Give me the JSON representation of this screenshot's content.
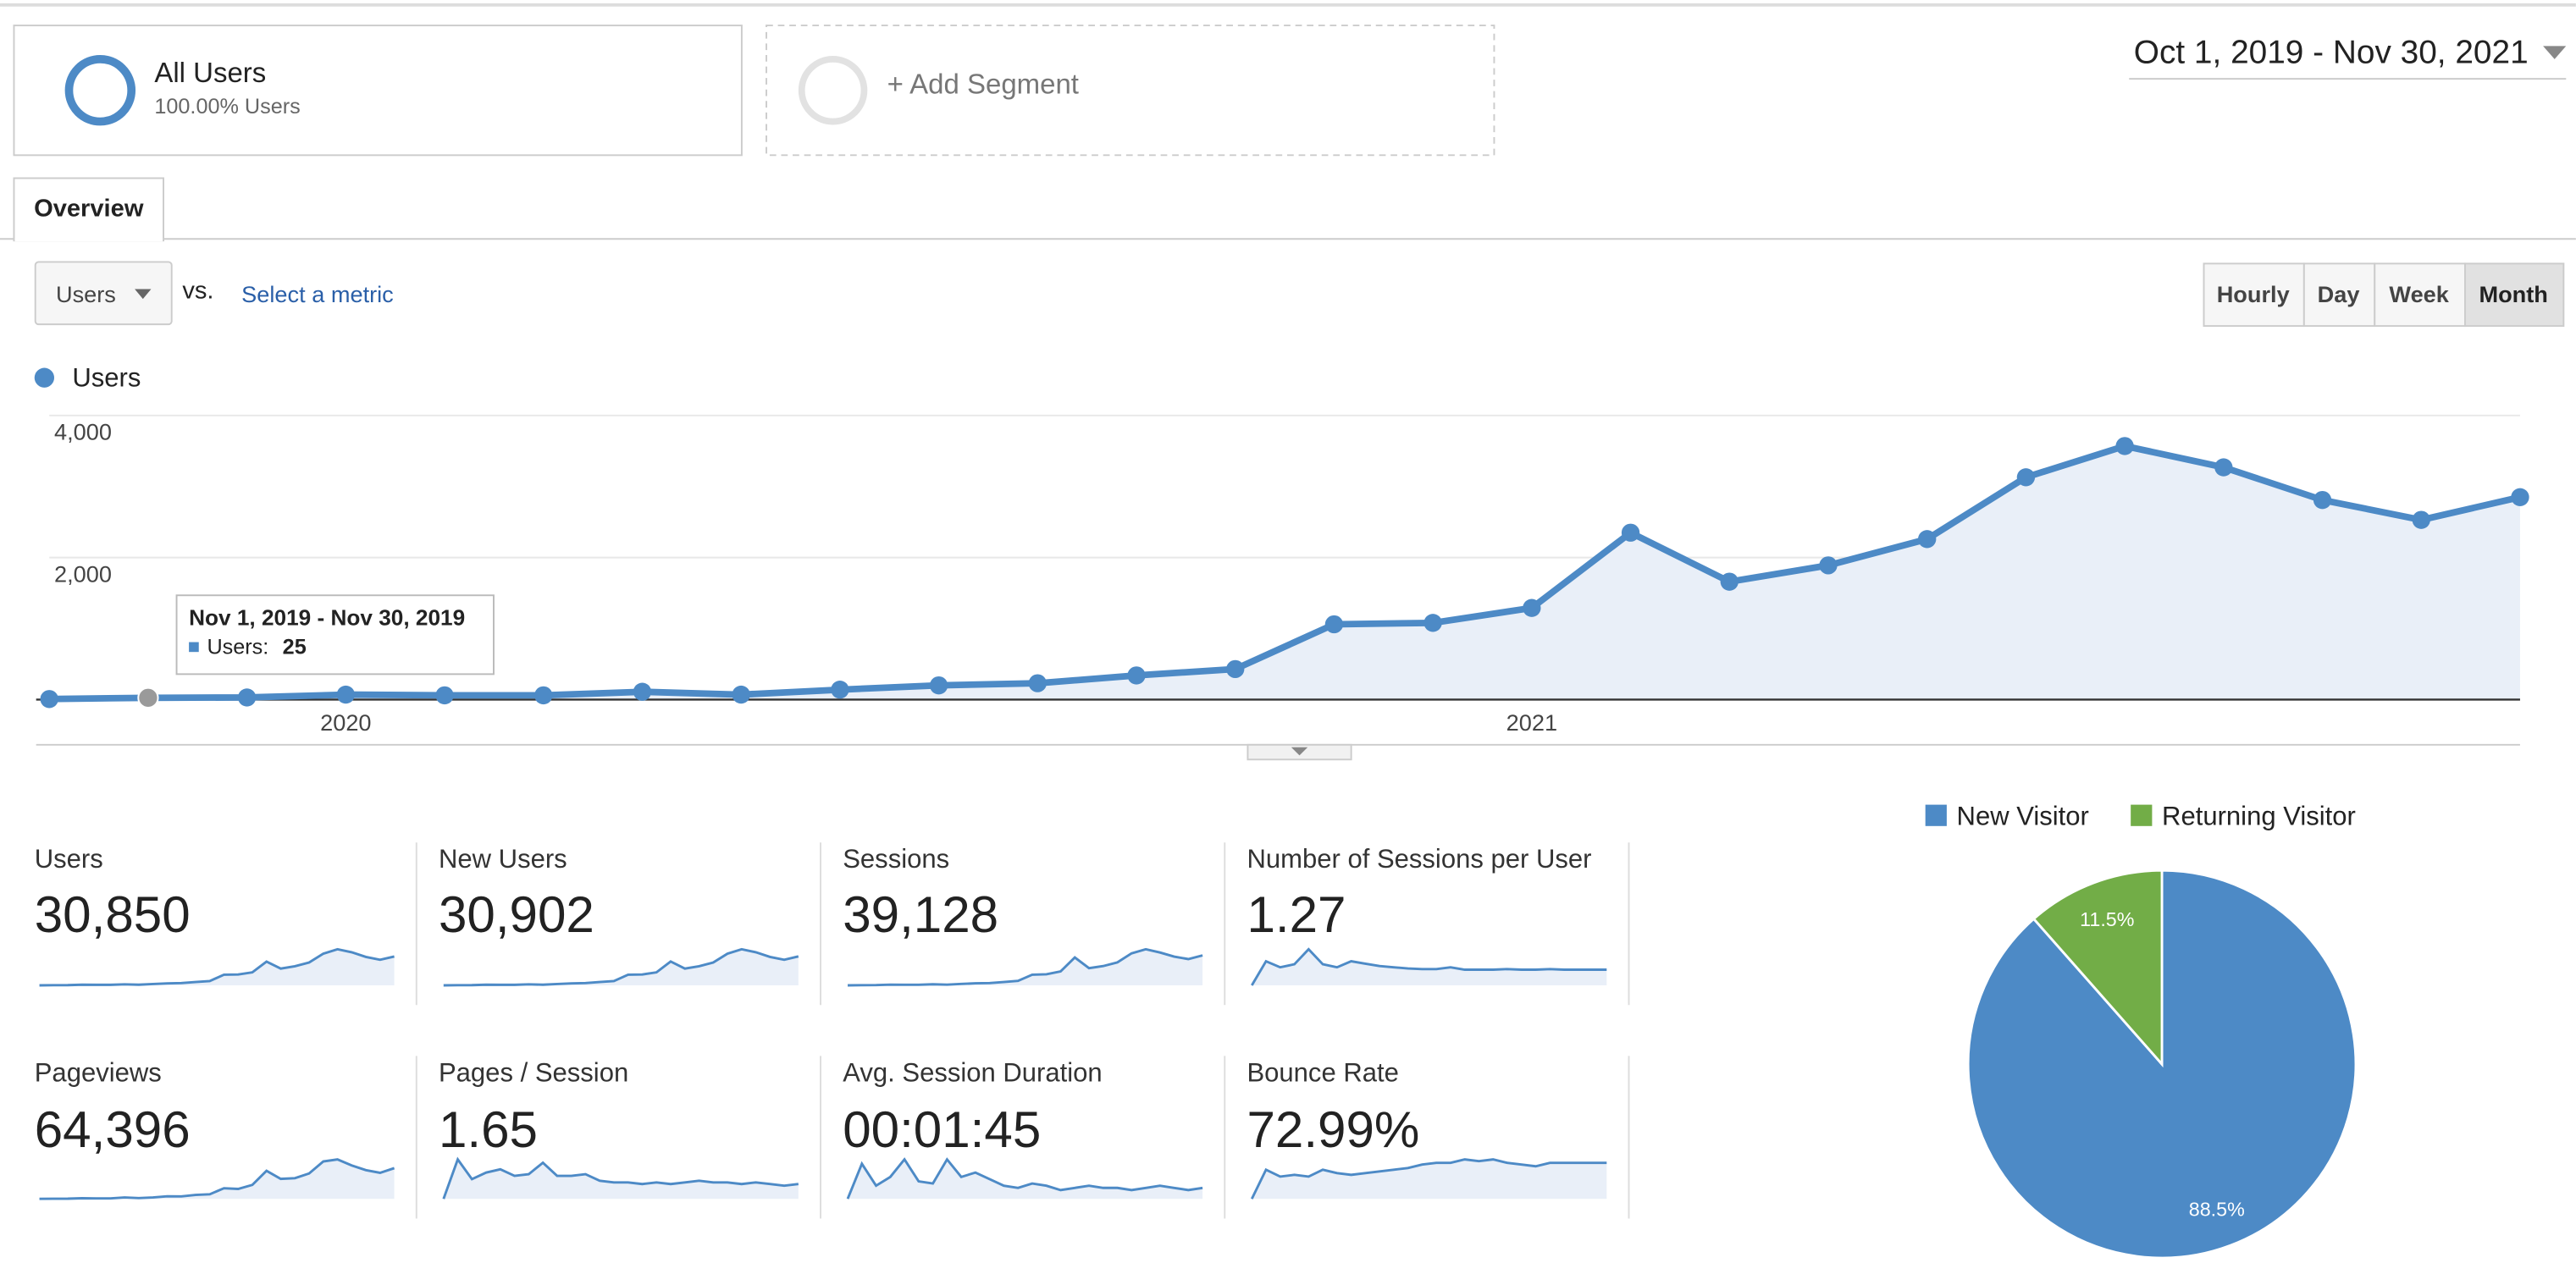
{
  "segments": [
    {
      "name": "All Users",
      "detail": "100.00% Users"
    }
  ],
  "add_segment": "+ Add Segment",
  "date_range": "Oct 1, 2019 - Nov 30, 2021",
  "tabs": [
    "Overview"
  ],
  "metric_selector": "Users",
  "vs": "vs.",
  "select_metric": "Select a metric",
  "granularity": [
    "Hourly",
    "Day",
    "Week",
    "Month"
  ],
  "selected_granularity": "Month",
  "main_chart": {
    "type": "line",
    "categories": [
      null,
      null,
      null,
      "2020",
      null,
      null,
      null,
      null,
      null,
      null,
      null,
      null,
      null,
      null,
      null,
      "2021",
      null,
      null,
      null,
      null,
      null,
      null,
      null,
      null,
      null,
      null
    ],
    "series": [
      {
        "name": "Users",
        "color": "#4d8ac6",
        "values": [
          8,
          25,
          30,
          70,
          60,
          60,
          110,
          70,
          140,
          200,
          230,
          340,
          430,
          1060,
          1080,
          1290,
          2350,
          1660,
          1890,
          2260,
          3130,
          3570,
          3270,
          2810,
          2530,
          2850
        ]
      }
    ],
    "ylim": [
      0,
      4000
    ],
    "yticks": [
      {
        "value": 2000,
        "label": "2,000"
      },
      {
        "value": 4000,
        "label": "4,000"
      }
    ],
    "tooltip": {
      "title": "Nov 1, 2019 - Nov 30, 2019",
      "label": "Users:",
      "value": 25
    }
  },
  "metrics": [
    {
      "label": "Users",
      "value": "30,850",
      "sparkline": [
        8,
        25,
        30,
        70,
        60,
        60,
        110,
        70,
        140,
        200,
        230,
        340,
        430,
        1060,
        1080,
        1290,
        2350,
        1660,
        1890,
        2260,
        3130,
        3570,
        3270,
        2810,
        2530,
        2850
      ]
    },
    {
      "label": "New Users",
      "value": "30,902",
      "sparkline": [
        8,
        25,
        30,
        70,
        60,
        60,
        110,
        70,
        140,
        200,
        230,
        340,
        430,
        1060,
        1080,
        1290,
        2360,
        1660,
        1890,
        2260,
        3130,
        3570,
        3270,
        2810,
        2530,
        2860
      ]
    },
    {
      "label": "Sessions",
      "value": "39,128",
      "sparkline": [
        10,
        30,
        40,
        90,
        80,
        80,
        140,
        90,
        180,
        260,
        290,
        420,
        560,
        1300,
        1350,
        1700,
        3400,
        2100,
        2350,
        2800,
        3900,
        4400,
        4000,
        3500,
        3200,
        3650
      ]
    },
    {
      "label": "Number of Sessions per User",
      "value": "1.27",
      "sparkline": [
        1.0,
        1.4,
        1.3,
        1.35,
        1.6,
        1.35,
        1.3,
        1.4,
        1.36,
        1.32,
        1.3,
        1.28,
        1.27,
        1.27,
        1.3,
        1.26,
        1.26,
        1.26,
        1.27,
        1.26,
        1.26,
        1.27,
        1.26,
        1.26,
        1.26,
        1.26
      ]
    },
    {
      "label": "Pageviews",
      "value": "64,396",
      "sparkline": [
        20,
        40,
        45,
        110,
        90,
        80,
        230,
        130,
        230,
        400,
        380,
        600,
        700,
        1600,
        1500,
        2100,
        4200,
        3000,
        3100,
        3800,
        5600,
        5900,
        5000,
        4300,
        3900,
        4600
      ]
    },
    {
      "label": "Pages / Session",
      "value": "1.65",
      "sparkline": [
        1.2,
        2.4,
        1.8,
        2.0,
        2.1,
        1.9,
        1.95,
        2.3,
        1.9,
        1.9,
        1.95,
        1.75,
        1.7,
        1.7,
        1.65,
        1.7,
        1.65,
        1.7,
        1.75,
        1.7,
        1.7,
        1.65,
        1.7,
        1.65,
        1.6,
        1.65
      ]
    },
    {
      "label": "Avg. Session Duration",
      "value": "00:01:45",
      "sparkline": [
        60,
        140,
        90,
        110,
        150,
        100,
        95,
        150,
        110,
        120,
        105,
        90,
        85,
        95,
        90,
        80,
        85,
        90,
        85,
        85,
        80,
        85,
        90,
        85,
        80,
        85
      ]
    },
    {
      "label": "Bounce Rate",
      "value": "72.99%",
      "sparkline": [
        55,
        72,
        68,
        69,
        68,
        72,
        70,
        69,
        70,
        71,
        72,
        73,
        75,
        76,
        76,
        78,
        77,
        78,
        76,
        75,
        74,
        76,
        76,
        76,
        76,
        76
      ]
    }
  ],
  "pie_chart": {
    "type": "pie",
    "categories": [
      "New Visitor",
      "Returning Visitor"
    ],
    "values": [
      88.5,
      11.5
    ],
    "value_labels": [
      "88.5%",
      "11.5%"
    ],
    "colors": [
      "#4d8ac6",
      "#72ad47"
    ]
  }
}
